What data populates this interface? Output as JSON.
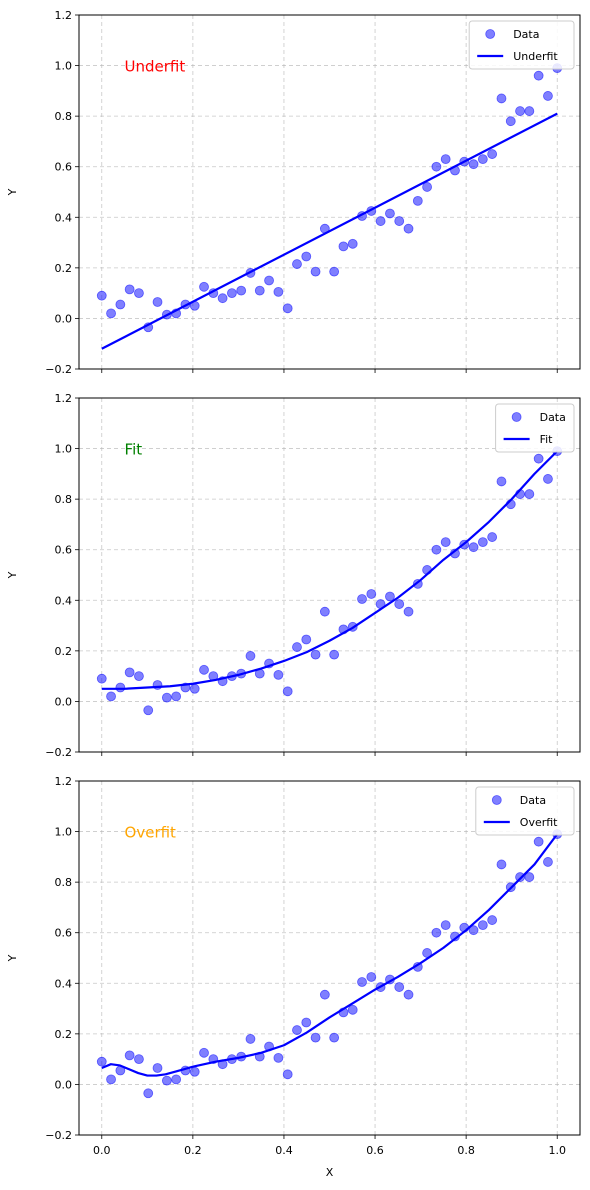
{
  "chart_data": [
    {
      "type": "scatter",
      "annotation": {
        "text": "Underfit",
        "color": "#ff0000"
      },
      "xlabel": "",
      "ylabel": "Y",
      "xlim": [
        -0.05,
        1.05
      ],
      "ylim": [
        -0.2,
        1.2
      ],
      "xticks": [
        0.0,
        0.2,
        0.4,
        0.6,
        0.8,
        1.0
      ],
      "yticks": [
        -0.2,
        0.0,
        0.2,
        0.4,
        0.6,
        0.8,
        1.0,
        1.2
      ],
      "x_tick_labels_visible": false,
      "grid": true,
      "legend_position": "top-right",
      "series": [
        {
          "name": "Data",
          "kind": "scatter",
          "color": "#0000ff",
          "ref": "data_points"
        },
        {
          "name": "Underfit",
          "kind": "line",
          "color": "#0000ff",
          "x": [
            0.0,
            1.0
          ],
          "y": [
            -0.12,
            0.81
          ]
        }
      ]
    },
    {
      "type": "scatter",
      "annotation": {
        "text": "Fit",
        "color": "#008000"
      },
      "xlabel": "",
      "ylabel": "Y",
      "xlim": [
        -0.05,
        1.05
      ],
      "ylim": [
        -0.2,
        1.2
      ],
      "xticks": [
        0.0,
        0.2,
        0.4,
        0.6,
        0.8,
        1.0
      ],
      "yticks": [
        -0.2,
        0.0,
        0.2,
        0.4,
        0.6,
        0.8,
        1.0,
        1.2
      ],
      "x_tick_labels_visible": false,
      "grid": true,
      "legend_position": "top-right",
      "series": [
        {
          "name": "Data",
          "kind": "scatter",
          "color": "#0000ff",
          "ref": "data_points"
        },
        {
          "name": "Fit",
          "kind": "line",
          "color": "#0000ff",
          "x": [
            0.0,
            0.05,
            0.1,
            0.15,
            0.2,
            0.25,
            0.3,
            0.35,
            0.4,
            0.45,
            0.5,
            0.55,
            0.6,
            0.65,
            0.7,
            0.75,
            0.8,
            0.85,
            0.9,
            0.95,
            1.0
          ],
          "y": [
            0.05,
            0.05,
            0.055,
            0.06,
            0.07,
            0.085,
            0.105,
            0.13,
            0.16,
            0.195,
            0.24,
            0.29,
            0.35,
            0.41,
            0.48,
            0.56,
            0.63,
            0.71,
            0.8,
            0.9,
            0.99
          ]
        }
      ]
    },
    {
      "type": "scatter",
      "annotation": {
        "text": "Overfit",
        "color": "#ffa500"
      },
      "xlabel": "X",
      "ylabel": "Y",
      "xlim": [
        -0.05,
        1.05
      ],
      "ylim": [
        -0.2,
        1.2
      ],
      "xticks": [
        0.0,
        0.2,
        0.4,
        0.6,
        0.8,
        1.0
      ],
      "yticks": [
        -0.2,
        0.0,
        0.2,
        0.4,
        0.6,
        0.8,
        1.0,
        1.2
      ],
      "x_tick_labels_visible": true,
      "grid": true,
      "legend_position": "top-right",
      "series": [
        {
          "name": "Data",
          "kind": "scatter",
          "color": "#0000ff",
          "ref": "data_points"
        },
        {
          "name": "Overfit",
          "kind": "line",
          "color": "#0000ff",
          "x": [
            0.0,
            0.02,
            0.04,
            0.06,
            0.08,
            0.1,
            0.12,
            0.14,
            0.16,
            0.18,
            0.2,
            0.25,
            0.3,
            0.35,
            0.4,
            0.45,
            0.5,
            0.55,
            0.6,
            0.65,
            0.7,
            0.75,
            0.8,
            0.85,
            0.9,
            0.95,
            1.0
          ],
          "y": [
            0.065,
            0.08,
            0.075,
            0.06,
            0.045,
            0.035,
            0.035,
            0.04,
            0.05,
            0.06,
            0.07,
            0.09,
            0.105,
            0.125,
            0.155,
            0.205,
            0.265,
            0.32,
            0.375,
            0.425,
            0.48,
            0.54,
            0.61,
            0.69,
            0.78,
            0.87,
            0.99
          ]
        }
      ]
    }
  ],
  "data_points": {
    "x": [
      0.0,
      0.0204,
      0.0408,
      0.0612,
      0.0816,
      0.102,
      0.1224,
      0.1429,
      0.1633,
      0.1837,
      0.2041,
      0.2245,
      0.2449,
      0.2653,
      0.2857,
      0.3061,
      0.3265,
      0.3469,
      0.3673,
      0.3878,
      0.4082,
      0.4286,
      0.449,
      0.4694,
      0.4898,
      0.5102,
      0.5306,
      0.551,
      0.5714,
      0.5918,
      0.6122,
      0.6327,
      0.6531,
      0.6735,
      0.6939,
      0.7143,
      0.7347,
      0.7551,
      0.7755,
      0.7959,
      0.8163,
      0.8367,
      0.8571,
      0.8776,
      0.898,
      0.9184,
      0.9388,
      0.9592,
      0.9796,
      1.0
    ],
    "y": [
      0.09,
      0.02,
      0.055,
      0.115,
      0.1,
      -0.035,
      0.065,
      0.015,
      0.02,
      0.055,
      0.05,
      0.125,
      0.1,
      0.08,
      0.1,
      0.11,
      0.18,
      0.11,
      0.15,
      0.105,
      0.04,
      0.215,
      0.245,
      0.185,
      0.355,
      0.185,
      0.285,
      0.295,
      0.405,
      0.425,
      0.385,
      0.415,
      0.385,
      0.355,
      0.465,
      0.52,
      0.6,
      0.63,
      0.585,
      0.62,
      0.61,
      0.63,
      0.65,
      0.87,
      0.78,
      0.82,
      0.82,
      0.96,
      0.88,
      0.99
    ]
  }
}
